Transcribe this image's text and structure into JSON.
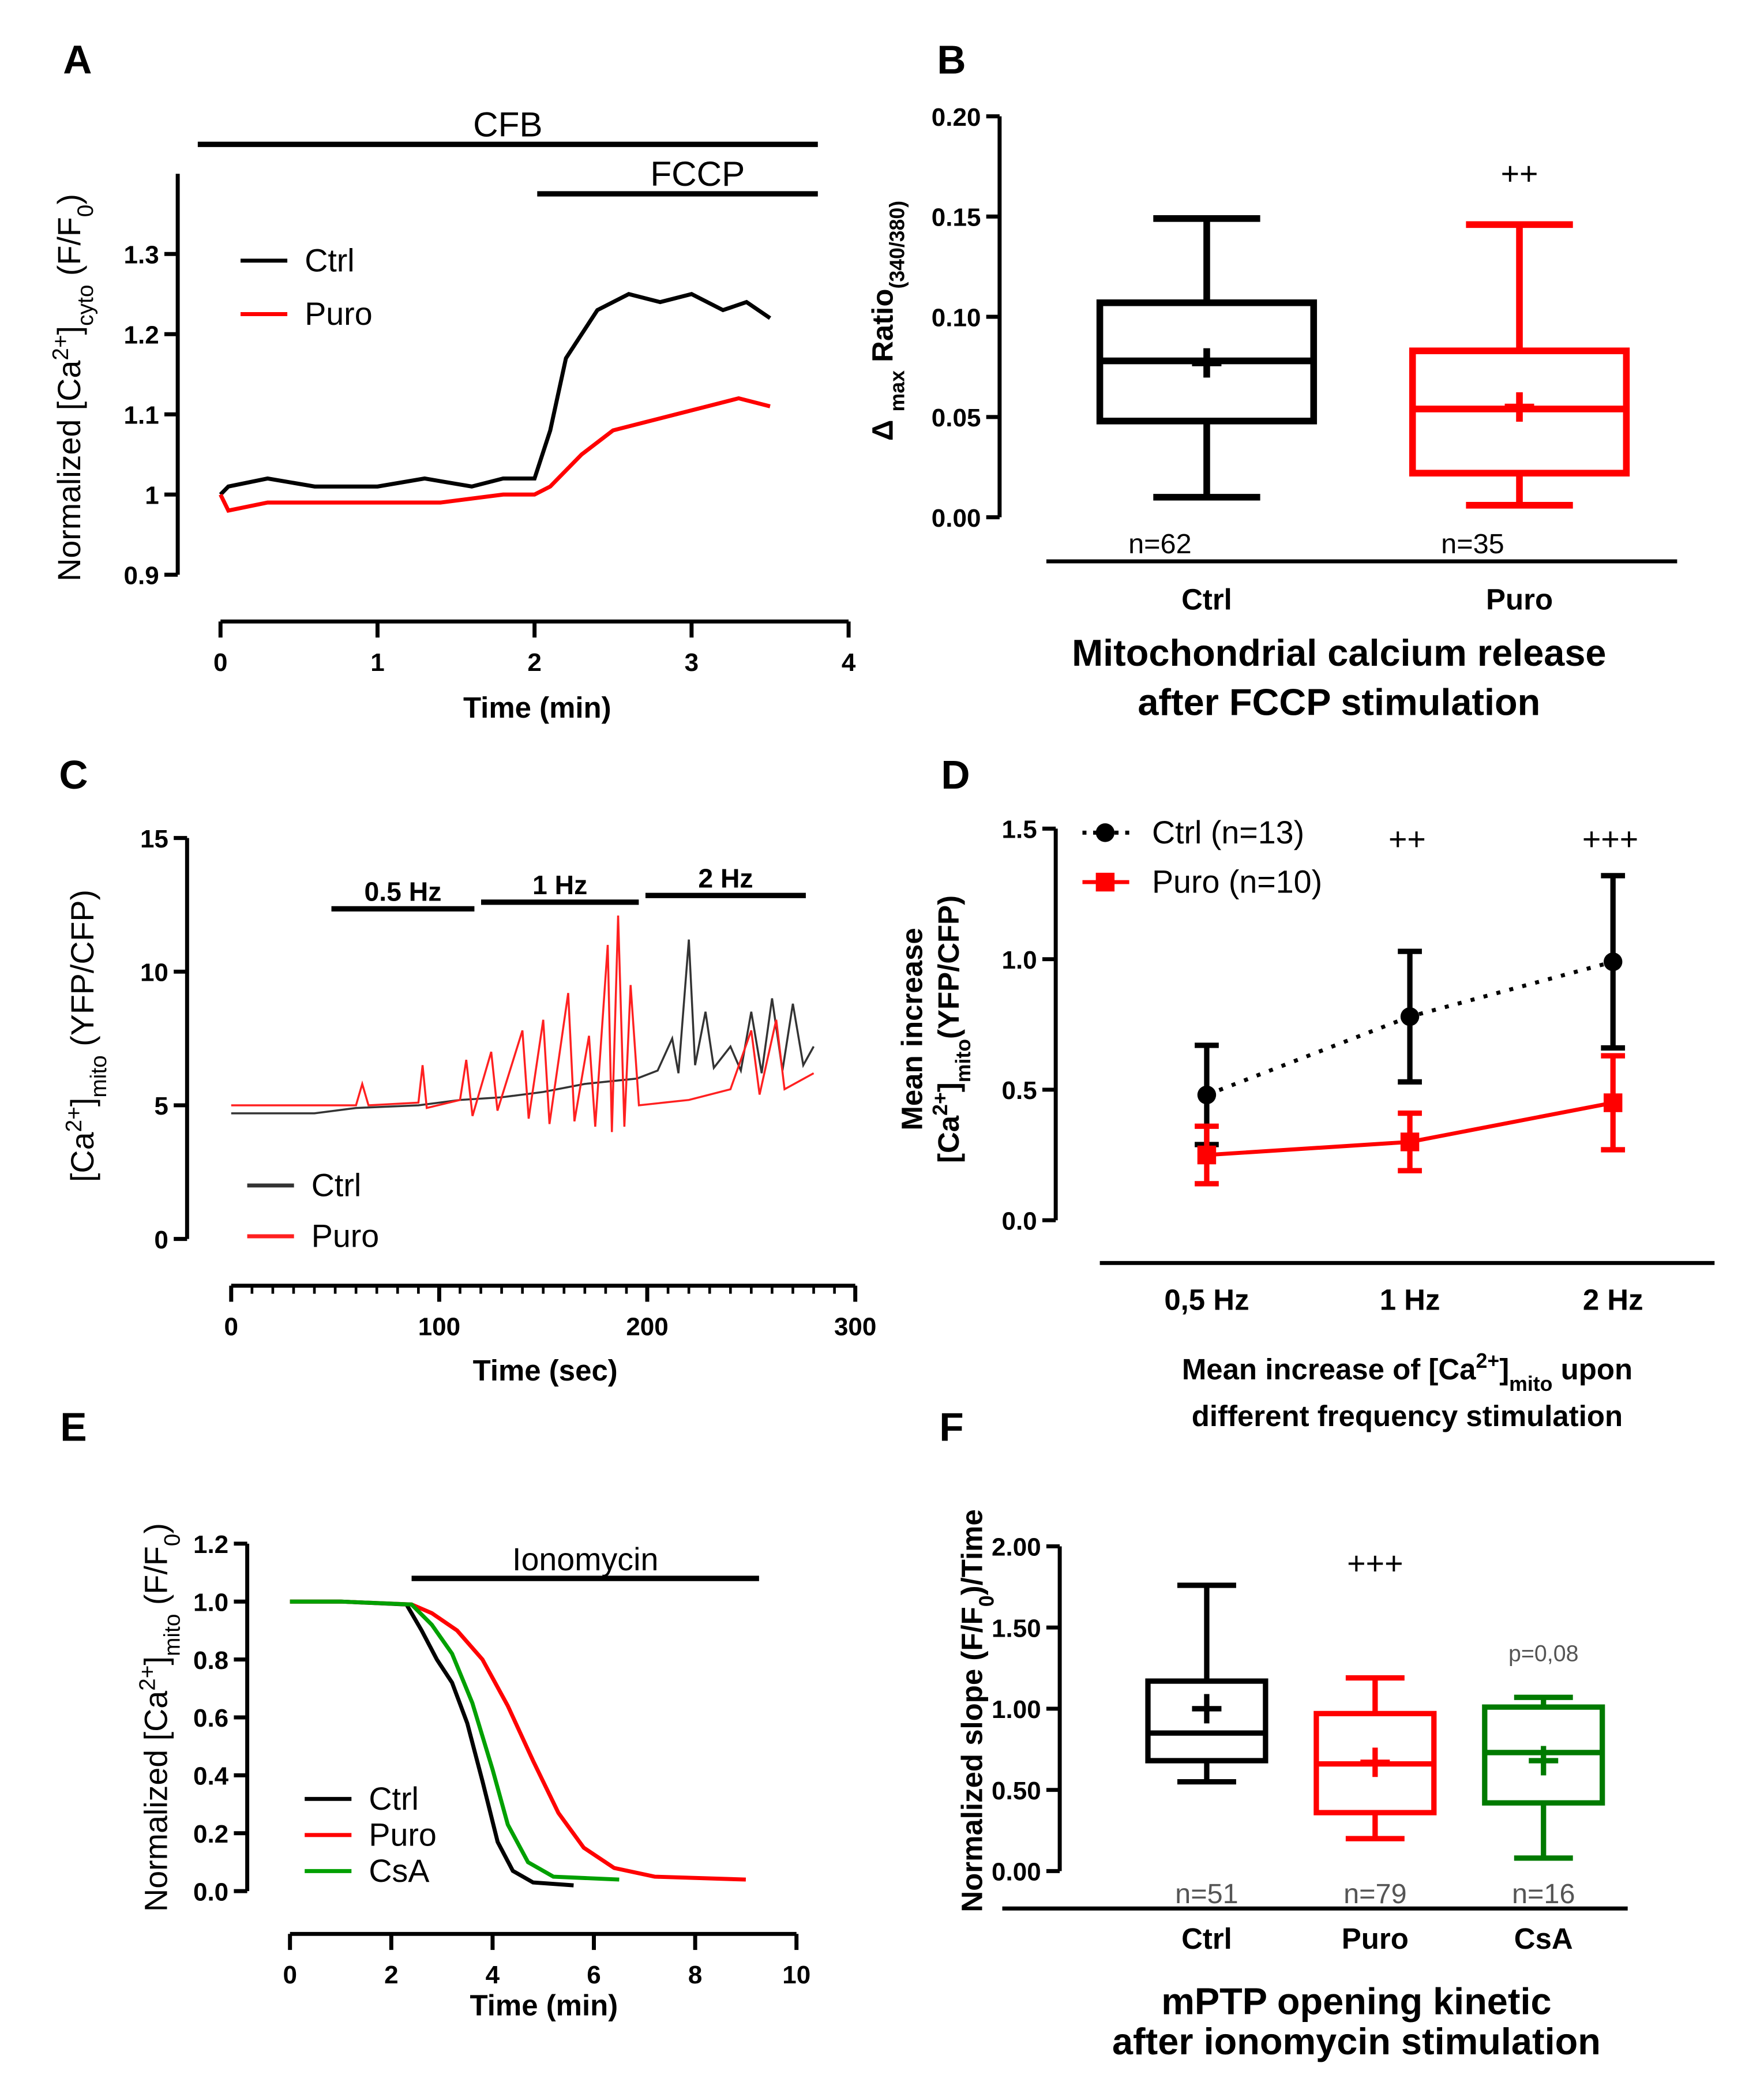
{
  "panels": [
    "A",
    "B",
    "C",
    "D",
    "E",
    "F"
  ],
  "chart_data": [
    {
      "id": "A",
      "type": "line",
      "xlabel": "Time (min)",
      "ylabel": [
        {
          "t": "Normalized [Ca"
        },
        {
          "t": "2+",
          "s": "sup"
        },
        {
          "t": "]"
        },
        {
          "t": "cyto",
          "s": "sub"
        },
        {
          "t": " (F/F"
        },
        {
          "t": "0",
          "s": "sub"
        },
        {
          "t": ")"
        }
      ],
      "xlim": [
        0,
        4
      ],
      "ylim": [
        0.9,
        1.3
      ],
      "xticks": [
        0,
        1,
        2,
        3,
        4
      ],
      "yticks": [
        0.9,
        1.0,
        1.1,
        1.2,
        1.3
      ],
      "bars": [
        {
          "label": "CFB"
        },
        {
          "label": "FCCP"
        }
      ],
      "series": [
        {
          "name": "Ctrl",
          "color": "#000000",
          "points": [
            [
              0,
              1.0
            ],
            [
              0.05,
              1.01
            ],
            [
              0.3,
              1.02
            ],
            [
              0.6,
              1.01
            ],
            [
              1.0,
              1.01
            ],
            [
              1.3,
              1.02
            ],
            [
              1.6,
              1.01
            ],
            [
              1.8,
              1.02
            ],
            [
              2.0,
              1.02
            ],
            [
              2.1,
              1.08
            ],
            [
              2.2,
              1.17
            ],
            [
              2.3,
              1.2
            ],
            [
              2.4,
              1.23
            ],
            [
              2.6,
              1.25
            ],
            [
              2.8,
              1.24
            ],
            [
              3.0,
              1.25
            ],
            [
              3.2,
              1.23
            ],
            [
              3.35,
              1.24
            ],
            [
              3.5,
              1.22
            ]
          ]
        },
        {
          "name": "Puro",
          "color": "#ff0000",
          "points": [
            [
              0,
              1.0
            ],
            [
              0.05,
              0.98
            ],
            [
              0.3,
              0.99
            ],
            [
              0.6,
              0.99
            ],
            [
              1.0,
              0.99
            ],
            [
              1.4,
              0.99
            ],
            [
              1.8,
              1.0
            ],
            [
              2.0,
              1.0
            ],
            [
              2.1,
              1.01
            ],
            [
              2.3,
              1.05
            ],
            [
              2.5,
              1.08
            ],
            [
              2.7,
              1.09
            ],
            [
              2.9,
              1.1
            ],
            [
              3.1,
              1.11
            ],
            [
              3.3,
              1.12
            ],
            [
              3.5,
              1.11
            ]
          ]
        }
      ]
    },
    {
      "id": "B",
      "type": "box",
      "ylabel": [
        {
          "t": "Δ "
        },
        {
          "t": "max",
          "s": "sub"
        },
        {
          "t": " Ratio"
        },
        {
          "t": "(340/380)",
          "s": "sub"
        }
      ],
      "ylim": [
        0,
        0.2
      ],
      "yticks": [
        "0.00",
        "0.05",
        "0.10",
        "0.15",
        "0.20"
      ],
      "title": [
        "Mitochondrial calcium release",
        "after FCCP stimulation"
      ],
      "groups": [
        {
          "name": "Ctrl",
          "color": "#000000",
          "min": 0.01,
          "q1": 0.048,
          "median": 0.078,
          "q3": 0.107,
          "max": 0.149,
          "mean": 0.077,
          "n": "n=62",
          "sig": ""
        },
        {
          "name": "Puro",
          "color": "#ff0000",
          "min": 0.006,
          "q1": 0.022,
          "median": 0.054,
          "q3": 0.083,
          "max": 0.146,
          "mean": 0.055,
          "n": "n=35",
          "sig": "++"
        }
      ]
    },
    {
      "id": "C",
      "type": "line",
      "xlabel": "Time (sec)",
      "ylabel": [
        {
          "t": "[Ca"
        },
        {
          "t": "2+",
          "s": "sup"
        },
        {
          "t": "]"
        },
        {
          "t": "mito",
          "s": "sub"
        },
        {
          "t": " (YFP/CFP)"
        }
      ],
      "xlim": [
        0,
        300
      ],
      "ylim": [
        0,
        15
      ],
      "xticks": [
        0,
        100,
        200,
        300
      ],
      "yticks": [
        0,
        5,
        10,
        15
      ],
      "bars": [
        {
          "label": "0.5 Hz"
        },
        {
          "label": "1 Hz"
        },
        {
          "label": "2 Hz"
        }
      ],
      "series": [
        {
          "name": "Ctrl",
          "color": "#333333",
          "points": [
            [
              0,
              4.7
            ],
            [
              40,
              4.7
            ],
            [
              60,
              4.9
            ],
            [
              90,
              5.0
            ],
            [
              110,
              5.2
            ],
            [
              130,
              5.3
            ],
            [
              150,
              5.5
            ],
            [
              170,
              5.8
            ],
            [
              195,
              6.0
            ],
            [
              205,
              6.3
            ],
            [
              212,
              7.5
            ],
            [
              215,
              6.2
            ],
            [
              220,
              11.2
            ],
            [
              223,
              6.5
            ],
            [
              228,
              8.5
            ],
            [
              232,
              6.4
            ],
            [
              240,
              7.2
            ],
            [
              245,
              6.3
            ],
            [
              250,
              8.5
            ],
            [
              255,
              6.2
            ],
            [
              260,
              9
            ],
            [
              265,
              6.3
            ],
            [
              270,
              8.8
            ],
            [
              275,
              6.5
            ],
            [
              280,
              7.2
            ]
          ]
        },
        {
          "name": "Puro",
          "color": "#ff2020",
          "points": [
            [
              0,
              5.0
            ],
            [
              60,
              5.0
            ],
            [
              63,
              5.8
            ],
            [
              66,
              5.0
            ],
            [
              90,
              5.1
            ],
            [
              92,
              6.5
            ],
            [
              94,
              4.9
            ],
            [
              110,
              5.2
            ],
            [
              113,
              6.7
            ],
            [
              116,
              4.6
            ],
            [
              125,
              7.0
            ],
            [
              128,
              4.8
            ],
            [
              140,
              7.8
            ],
            [
              143,
              4.5
            ],
            [
              150,
              8.2
            ],
            [
              153,
              4.3
            ],
            [
              162,
              9.2
            ],
            [
              165,
              4.4
            ],
            [
              172,
              7.6
            ],
            [
              175,
              4.2
            ],
            [
              181,
              11
            ],
            [
              183,
              4.0
            ],
            [
              186,
              12.1
            ],
            [
              189,
              4.2
            ],
            [
              192,
              9.5
            ],
            [
              196,
              5.0
            ],
            [
              220,
              5.2
            ],
            [
              240,
              5.6
            ],
            [
              250,
              7.8
            ],
            [
              254,
              5.4
            ],
            [
              262,
              8.2
            ],
            [
              266,
              5.6
            ],
            [
              280,
              6.2
            ]
          ]
        }
      ]
    },
    {
      "id": "D",
      "type": "errorline",
      "categories": [
        "0,5 Hz",
        "1 Hz",
        "2 Hz"
      ],
      "ylabel": [
        {
          "t": "Mean increase"
        },
        {
          "t": "[Ca",
          "br": 1
        },
        {
          "t": "2+",
          "s": "sup"
        },
        {
          "t": "]"
        },
        {
          "t": "mito",
          "s": "sub"
        },
        {
          "t": "(YFP/CFP)"
        }
      ],
      "ylim": [
        0,
        1.5
      ],
      "yticks": [
        "0.0",
        "0.5",
        "1.0",
        "1.5"
      ],
      "title": [
        [
          {
            "t": "Mean increase of [Ca"
          },
          {
            "t": "2+",
            "s": "sup"
          },
          {
            "t": "]"
          },
          {
            "t": "mito",
            "s": "sub"
          },
          {
            "t": " upon"
          }
        ],
        [
          {
            "t": "different frequency stimulation"
          }
        ]
      ],
      "sig": [
        "",
        "++",
        "+++"
      ],
      "series": [
        {
          "name": "Ctrl (n=13)",
          "color": "#000000",
          "marker": "circle",
          "dash": true,
          "values": [
            0.48,
            0.78,
            0.99
          ],
          "err": [
            0.19,
            0.25,
            0.33
          ]
        },
        {
          "name": "Puro (n=10)",
          "color": "#ff0000",
          "marker": "square",
          "dash": false,
          "values": [
            0.25,
            0.3,
            0.45
          ],
          "err": [
            0.11,
            0.11,
            0.18
          ]
        }
      ]
    },
    {
      "id": "E",
      "type": "line",
      "xlabel": "Time (min)",
      "ylabel": [
        {
          "t": "Normalized [Ca"
        },
        {
          "t": "2+",
          "s": "sup"
        },
        {
          "t": "]"
        },
        {
          "t": "mito",
          "s": "sub"
        },
        {
          "t": " (F/F"
        },
        {
          "t": "0",
          "s": "sub"
        },
        {
          "t": ")"
        }
      ],
      "xlim": [
        0,
        10
      ],
      "ylim": [
        0,
        1.2
      ],
      "xticks": [
        0,
        2,
        4,
        6,
        8,
        10
      ],
      "yticks": [
        "0.0",
        "0.2",
        "0.4",
        "0.6",
        "0.8",
        "1.0",
        "1.2"
      ],
      "bars": [
        {
          "label": "Ionomycin"
        }
      ],
      "series": [
        {
          "name": "Ctrl",
          "color": "#000000",
          "points": [
            [
              0,
              1.0
            ],
            [
              1,
              1.0
            ],
            [
              2.3,
              0.99
            ],
            [
              2.6,
              0.9
            ],
            [
              2.9,
              0.8
            ],
            [
              3.2,
              0.72
            ],
            [
              3.5,
              0.58
            ],
            [
              3.8,
              0.38
            ],
            [
              4.1,
              0.17
            ],
            [
              4.4,
              0.07
            ],
            [
              4.8,
              0.03
            ],
            [
              5.6,
              0.02
            ]
          ]
        },
        {
          "name": "Puro",
          "color": "#ff0000",
          "points": [
            [
              0,
              1.0
            ],
            [
              1,
              1.0
            ],
            [
              2.4,
              0.99
            ],
            [
              2.8,
              0.96
            ],
            [
              3.3,
              0.9
            ],
            [
              3.8,
              0.8
            ],
            [
              4.3,
              0.64
            ],
            [
              4.8,
              0.45
            ],
            [
              5.3,
              0.27
            ],
            [
              5.8,
              0.15
            ],
            [
              6.4,
              0.08
            ],
            [
              7.2,
              0.05
            ],
            [
              9.0,
              0.04
            ]
          ]
        },
        {
          "name": "CsA",
          "color": "#00a000",
          "points": [
            [
              0,
              1.0
            ],
            [
              1,
              1.0
            ],
            [
              2.4,
              0.99
            ],
            [
              2.8,
              0.92
            ],
            [
              3.2,
              0.82
            ],
            [
              3.6,
              0.65
            ],
            [
              4.0,
              0.42
            ],
            [
              4.3,
              0.23
            ],
            [
              4.7,
              0.1
            ],
            [
              5.2,
              0.05
            ],
            [
              6.5,
              0.04
            ]
          ]
        }
      ]
    },
    {
      "id": "F",
      "type": "box",
      "ylabel": [
        {
          "t": "Normalized slope (F/F"
        },
        {
          "t": "0",
          "s": "sub"
        },
        {
          "t": ")/Time"
        }
      ],
      "ylim": [
        0,
        2
      ],
      "yticks": [
        "0.00",
        "0.50",
        "1.00",
        "1.50",
        "2.00"
      ],
      "title": [
        "mPTP opening kinetic",
        "after ionomycin stimulation"
      ],
      "groups": [
        {
          "name": "Ctrl",
          "color": "#000000",
          "min": 0.55,
          "q1": 0.68,
          "median": 0.85,
          "q3": 1.17,
          "max": 1.76,
          "mean": 1.0,
          "n": "n=51",
          "sig": ""
        },
        {
          "name": "Puro",
          "color": "#ff0000",
          "min": 0.2,
          "q1": 0.36,
          "median": 0.66,
          "q3": 0.97,
          "max": 1.19,
          "mean": 0.67,
          "n": "n=79",
          "sig": "+++"
        },
        {
          "name": "CsA",
          "color": "#007a00",
          "min": 0.08,
          "q1": 0.42,
          "median": 0.73,
          "q3": 1.01,
          "max": 1.07,
          "mean": 0.68,
          "n": "n=16",
          "sig": "p=0,08"
        }
      ]
    }
  ]
}
